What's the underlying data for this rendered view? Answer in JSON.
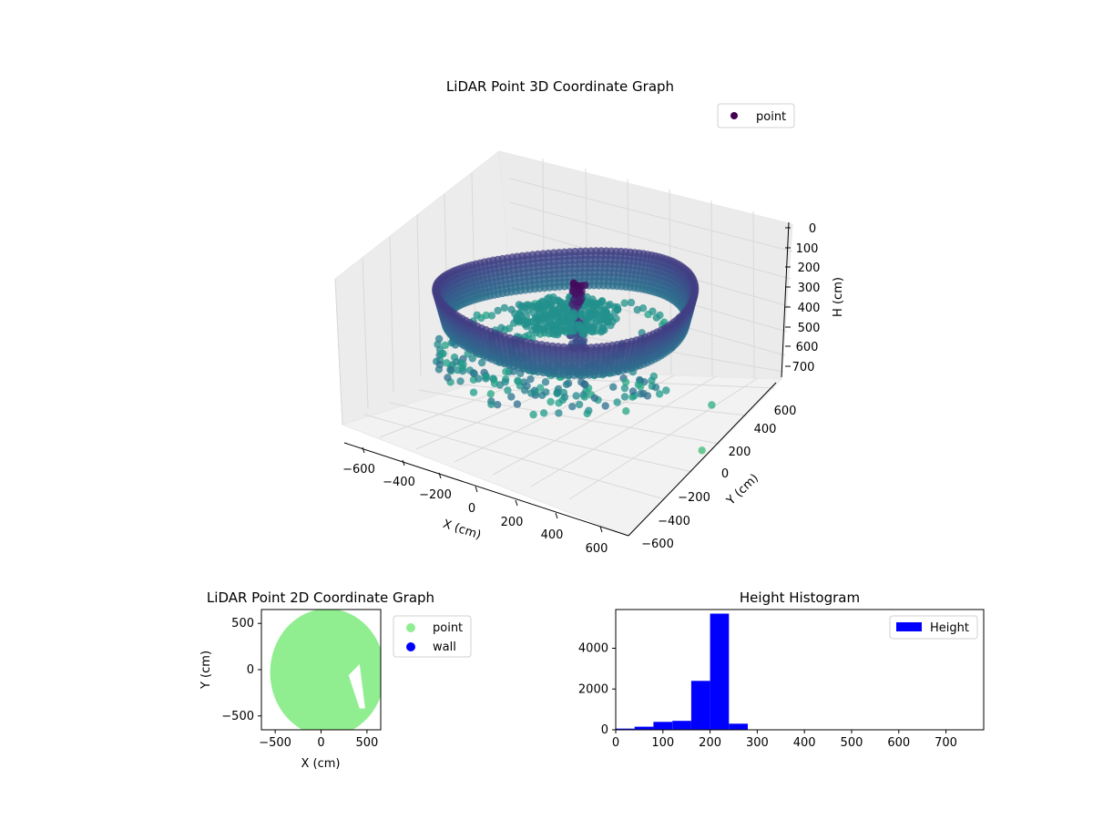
{
  "chart_data": [
    {
      "type": "scatter",
      "projection": "3d",
      "title": "LiDAR Point 3D Coordinate Graph",
      "xlabel": "X (cm)",
      "ylabel": "Y (cm)",
      "zlabel": "H (cm)",
      "xlim": [
        -650,
        650
      ],
      "ylim": [
        -650,
        650
      ],
      "zlim": [
        0,
        760
      ],
      "z_inverted": true,
      "xticks": [
        "−600",
        "−400",
        "−200",
        "0",
        "200",
        "400",
        "600"
      ],
      "yticks": [
        "−600",
        "−400",
        "−200",
        "0",
        "200",
        "400",
        "600"
      ],
      "zticks": [
        "0",
        "100",
        "200",
        "300",
        "400",
        "500",
        "600",
        "700"
      ],
      "legend": [
        {
          "label": "point",
          "color": "#440154"
        }
      ],
      "legend_position": "top-right",
      "colormap": "viridis",
      "grid": true,
      "structure": {
        "outer_ring_radius_cm": 560,
        "outer_ring_height_range_cm": [
          160,
          280
        ],
        "center_column_height_range_cm": [
          150,
          400
        ],
        "floor_height_cm": 240
      }
    },
    {
      "type": "scatter",
      "title": "LiDAR Point 2D Coordinate Graph",
      "xlabel": "X (cm)",
      "ylabel": "Y (cm)",
      "xlim": [
        -650,
        650
      ],
      "ylim": [
        -650,
        650
      ],
      "xticks": [
        "−500",
        "0",
        "500"
      ],
      "yticks": [
        "500",
        "0",
        "−500"
      ],
      "series": [
        {
          "name": "point",
          "color": "#90ee90"
        },
        {
          "name": "wall",
          "color": "#0000ff"
        }
      ],
      "legend_position": "outside-right",
      "grid": false
    },
    {
      "type": "bar",
      "title": "Height Histogram",
      "xlim": [
        0,
        780
      ],
      "ylim": [
        0,
        5900
      ],
      "xticks": [
        "0",
        "100",
        "200",
        "300",
        "400",
        "500",
        "600",
        "700"
      ],
      "yticks": [
        "0",
        "2000",
        "4000"
      ],
      "bin_edges": [
        0,
        40,
        80,
        120,
        160,
        200,
        240,
        280,
        320,
        360,
        400,
        440,
        480,
        520,
        560,
        600,
        640,
        680,
        720,
        760
      ],
      "values": [
        60,
        150,
        390,
        440,
        2400,
        5700,
        300,
        20,
        10,
        10,
        10,
        5,
        5,
        5,
        5,
        5,
        5,
        5,
        5
      ],
      "series": [
        {
          "name": "Height",
          "color": "#0000ff"
        }
      ],
      "legend_position": "top-right",
      "grid": false
    }
  ]
}
